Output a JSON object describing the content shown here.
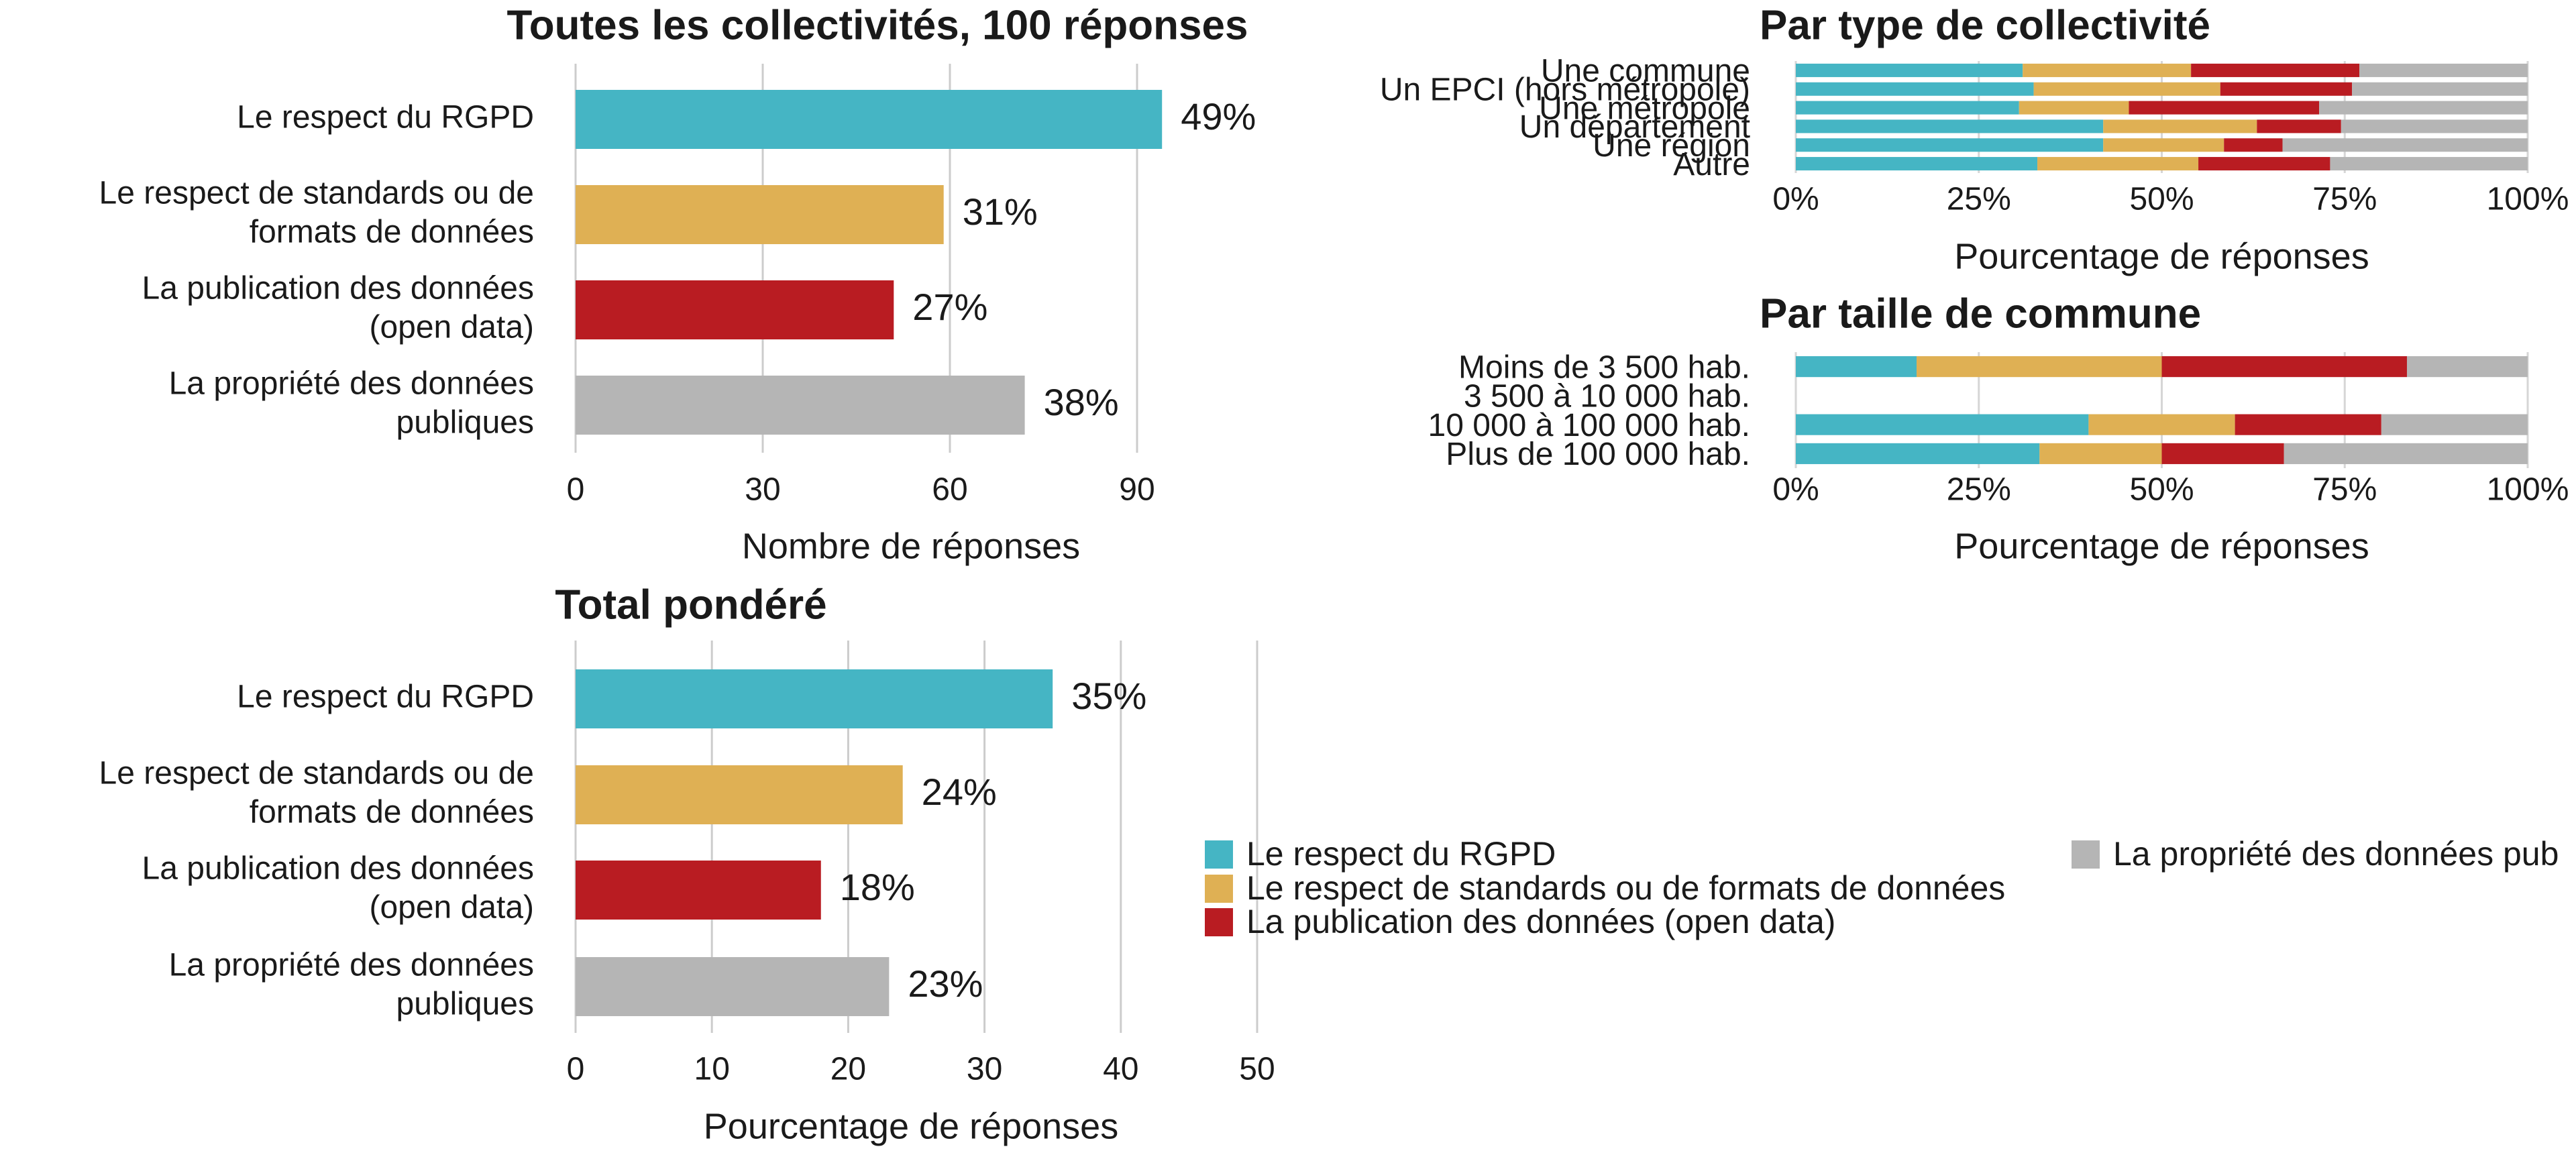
{
  "colors": {
    "rgpd": "#45B5C4",
    "standards": "#DFB054",
    "opendata": "#B91C22",
    "propriete": "#B5B5B5"
  },
  "chart_data": [
    {
      "type": "bar",
      "orientation": "horizontal",
      "title": "Toutes les collectivités, 100 réponses",
      "xlabel": "Nombre de réponses",
      "categories": [
        "Le respect du RGPD",
        "Le respect de standards ou de formats de données",
        "La publication des données (open data)",
        "La propriété des données publiques"
      ],
      "category_lines": [
        [
          "Le respect du RGPD"
        ],
        [
          "Le respect de standards ou de",
          "formats de données"
        ],
        [
          "La publication des données",
          "(open data)"
        ],
        [
          "La propriété des données",
          "publiques"
        ]
      ],
      "values": [
        94,
        59,
        51,
        72
      ],
      "data_labels": [
        "49%",
        "31%",
        "27%",
        "38%"
      ],
      "xlim": [
        0,
        100
      ],
      "xticks": [
        0,
        30,
        60,
        90
      ],
      "grid": true
    },
    {
      "type": "bar",
      "orientation": "horizontal",
      "stacked": "percent",
      "title": "Par type de collectivité",
      "xlabel": "Pourcentage de réponses",
      "categories": [
        "Une commune",
        "Un EPCI (hors métropole)",
        "Une métropole",
        "Un département",
        "Une région",
        "Autre"
      ],
      "xticks": [
        "0%",
        "25%",
        "50%",
        "75%",
        "100%"
      ],
      "series": [
        {
          "name": "Le respect du RGPD",
          "values": [
            31,
            32.5,
            30.5,
            42,
            42,
            33
          ]
        },
        {
          "name": "Le respect de standards ou de formats de données",
          "values": [
            23,
            25.5,
            15,
            21,
            16.5,
            22
          ]
        },
        {
          "name": "La publication des données (open data)",
          "values": [
            23,
            18,
            26,
            11.5,
            8,
            18
          ]
        },
        {
          "name": "La propriété des données publiques",
          "values": [
            23,
            24,
            28.5,
            25.5,
            33.5,
            27
          ]
        }
      ]
    },
    {
      "type": "bar",
      "orientation": "horizontal",
      "stacked": "percent",
      "title": "Par taille de commune",
      "xlabel": "Pourcentage de réponses",
      "categories": [
        "Moins de 3 500 hab.",
        "3 500 à 10 000 hab.",
        "10 000 à 100 000 hab.",
        "Plus de 100 000 hab."
      ],
      "xticks": [
        "0%",
        "25%",
        "50%",
        "75%",
        "100%"
      ],
      "series": [
        {
          "name": "Le respect du RGPD",
          "values": [
            16.5,
            0,
            40,
            33.3
          ]
        },
        {
          "name": "Le respect de standards ou de formats de données",
          "values": [
            33.5,
            0,
            20,
            16.7
          ]
        },
        {
          "name": "La publication des données (open data)",
          "values": [
            33.5,
            0,
            20,
            16.7
          ]
        },
        {
          "name": "La propriété des données publiques",
          "values": [
            16.5,
            0,
            20,
            33.3
          ]
        }
      ]
    },
    {
      "type": "bar",
      "orientation": "horizontal",
      "title": "Total pondéré",
      "xlabel": "Pourcentage de réponses",
      "categories": [
        "Le respect du RGPD",
        "Le respect de standards ou de formats de données",
        "La publication des données (open data)",
        "La propriété des données publiques"
      ],
      "category_lines": [
        [
          "Le respect du RGPD"
        ],
        [
          "Le respect de standards ou de",
          "formats de données"
        ],
        [
          "La publication des données",
          "(open data)"
        ],
        [
          "La propriété des données",
          "publiques"
        ]
      ],
      "values": [
        35,
        24,
        18,
        23
      ],
      "data_labels": [
        "35%",
        "24%",
        "18%",
        "23%"
      ],
      "xlim": [
        0,
        50
      ],
      "xticks": [
        0,
        10,
        20,
        30,
        40,
        50
      ],
      "grid": true
    }
  ],
  "legend": [
    {
      "label": "Le respect du RGPD",
      "color": "#45B5C4"
    },
    {
      "label": "Le respect de standards ou de formats de données",
      "color": "#DFB054"
    },
    {
      "label": "La publication des données (open data)",
      "color": "#B91C22"
    },
    {
      "label": "La propriété des données pub",
      "color": "#B5B5B5"
    }
  ]
}
